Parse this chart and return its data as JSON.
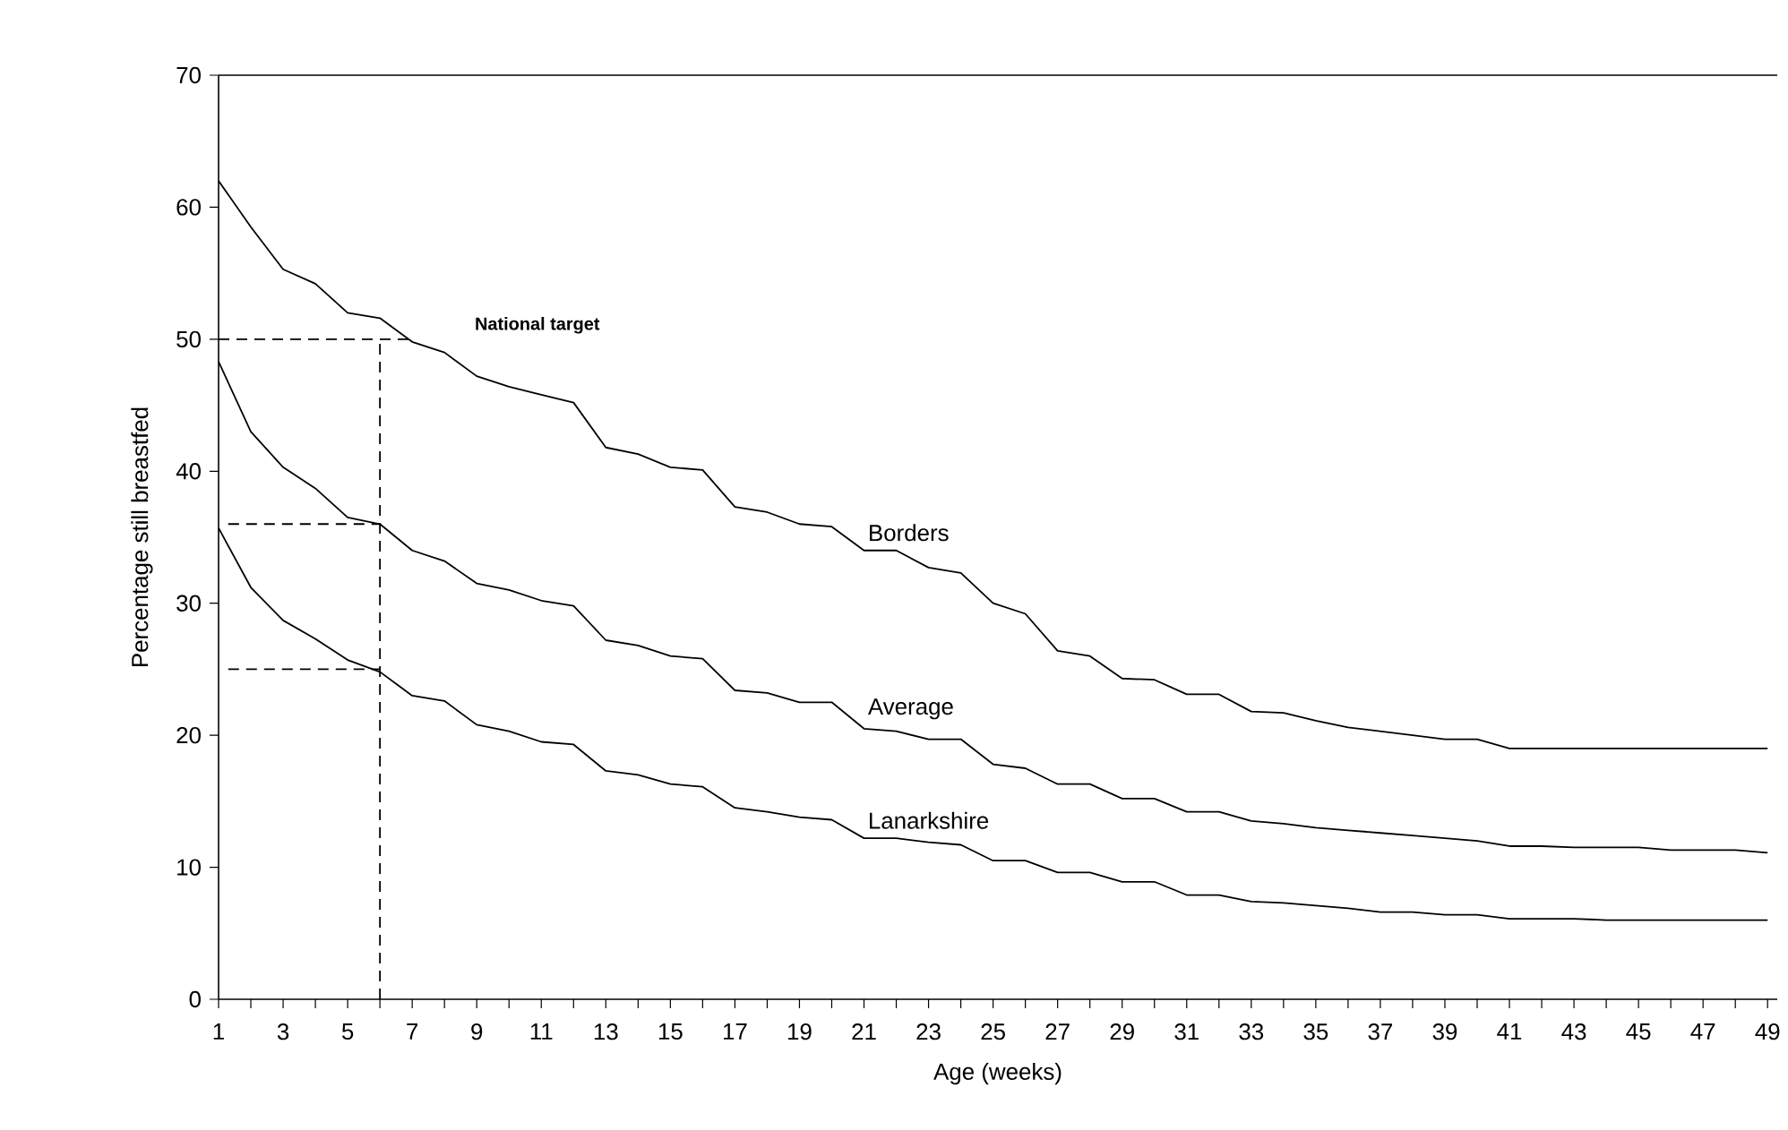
{
  "chart_data": {
    "type": "line",
    "xlabel": "Age (weeks)",
    "ylabel": "Percentage still breastfed",
    "x": [
      1,
      2,
      3,
      4,
      5,
      6,
      7,
      8,
      9,
      10,
      11,
      12,
      13,
      14,
      15,
      16,
      17,
      18,
      19,
      20,
      21,
      22,
      23,
      24,
      25,
      26,
      27,
      28,
      29,
      30,
      31,
      32,
      33,
      34,
      35,
      36,
      37,
      38,
      39,
      40,
      41,
      42,
      43,
      44,
      45,
      46,
      47,
      48,
      49
    ],
    "xlim": [
      1,
      49.3
    ],
    "ylim": [
      0,
      70
    ],
    "xticks": [
      1,
      {
        "value": 2,
        "label": null
      },
      3,
      {
        "value": 4,
        "label": null
      },
      5,
      {
        "value": 6,
        "label": null
      },
      7,
      {
        "value": 8,
        "label": null
      },
      9,
      {
        "value": 10,
        "label": null
      },
      11,
      {
        "value": 12,
        "label": null
      },
      13,
      {
        "value": 14,
        "label": null
      },
      15,
      {
        "value": 16,
        "label": null
      },
      17,
      {
        "value": 18,
        "label": null
      },
      19,
      {
        "value": 20,
        "label": null
      },
      21,
      {
        "value": 22,
        "label": null
      },
      23,
      {
        "value": 24,
        "label": null
      },
      25,
      {
        "value": 26,
        "label": null
      },
      27,
      {
        "value": 28,
        "label": null
      },
      29,
      {
        "value": 30,
        "label": null
      },
      31,
      {
        "value": 32,
        "label": null
      },
      33,
      {
        "value": 34,
        "label": null
      },
      35,
      {
        "value": 36,
        "label": null
      },
      37,
      {
        "value": 38,
        "label": null
      },
      39,
      {
        "value": 40,
        "label": null
      },
      41,
      {
        "value": 42,
        "label": null
      },
      43,
      {
        "value": 44,
        "label": null
      },
      45,
      {
        "value": 46,
        "label": null
      },
      47,
      {
        "value": 48,
        "label": null
      },
      49
    ],
    "yticks": [
      0,
      10,
      20,
      30,
      40,
      50,
      60,
      70
    ],
    "series": [
      {
        "name": "Borders",
        "color": "#000000",
        "values": [
          62,
          58.5,
          55.3,
          54.2,
          52,
          51.6,
          49.8,
          49,
          47.2,
          46.4,
          45.8,
          45.2,
          41.8,
          41.3,
          40.3,
          40.1,
          37.3,
          36.9,
          36,
          35.8,
          34,
          34,
          32.7,
          32.3,
          30,
          29.2,
          26.4,
          26,
          24.3,
          24.2,
          23.1,
          23.1,
          21.8,
          21.7,
          21.1,
          20.6,
          20.3,
          20,
          19.7,
          19.7,
          19,
          19,
          19,
          19,
          19,
          19,
          19,
          19,
          19
        ]
      },
      {
        "name": "Average",
        "color": "#000000",
        "values": [
          48.3,
          43,
          40.3,
          38.7,
          36.5,
          36,
          34,
          33.2,
          31.5,
          31,
          30.2,
          29.8,
          27.2,
          26.8,
          26,
          25.8,
          23.4,
          23.2,
          22.5,
          22.5,
          20.5,
          20.3,
          19.7,
          19.7,
          17.8,
          17.5,
          16.3,
          16.3,
          15.2,
          15.2,
          14.2,
          14.2,
          13.5,
          13.3,
          13,
          12.8,
          12.6,
          12.4,
          12.2,
          12,
          11.6,
          11.6,
          11.5,
          11.5,
          11.5,
          11.3,
          11.3,
          11.3,
          11.1
        ]
      },
      {
        "name": "Lanarkshire",
        "color": "#000000",
        "values": [
          35.7,
          31.2,
          28.7,
          27.3,
          25.7,
          24.8,
          23,
          22.6,
          20.8,
          20.3,
          19.5,
          19.3,
          17.3,
          17,
          16.3,
          16.1,
          14.5,
          14.2,
          13.8,
          13.6,
          12.2,
          12.2,
          11.9,
          11.7,
          10.5,
          10.5,
          9.6,
          9.6,
          8.9,
          8.9,
          7.9,
          7.9,
          7.4,
          7.3,
          7.1,
          6.9,
          6.6,
          6.6,
          6.4,
          6.4,
          6.1,
          6.1,
          6.1,
          6,
          6,
          6,
          6,
          6,
          6
        ]
      },
      {
        "color": "#000000",
        "line_style": "dashed",
        "x": [
          1,
          7.1
        ],
        "values": [
          50,
          50
        ]
      },
      {
        "color": "#000000",
        "line_style": "dashed",
        "x": [
          1.3,
          6
        ],
        "values": [
          36,
          36
        ]
      },
      {
        "color": "#000000",
        "line_style": "dashed",
        "x": [
          1.3,
          6
        ],
        "values": [
          25,
          25
        ]
      },
      {
        "color": "#000000",
        "line_style": "dashed",
        "x": [
          6,
          6
        ],
        "values": [
          0,
          50
        ]
      }
    ],
    "annotations": [
      "National target"
    ]
  }
}
